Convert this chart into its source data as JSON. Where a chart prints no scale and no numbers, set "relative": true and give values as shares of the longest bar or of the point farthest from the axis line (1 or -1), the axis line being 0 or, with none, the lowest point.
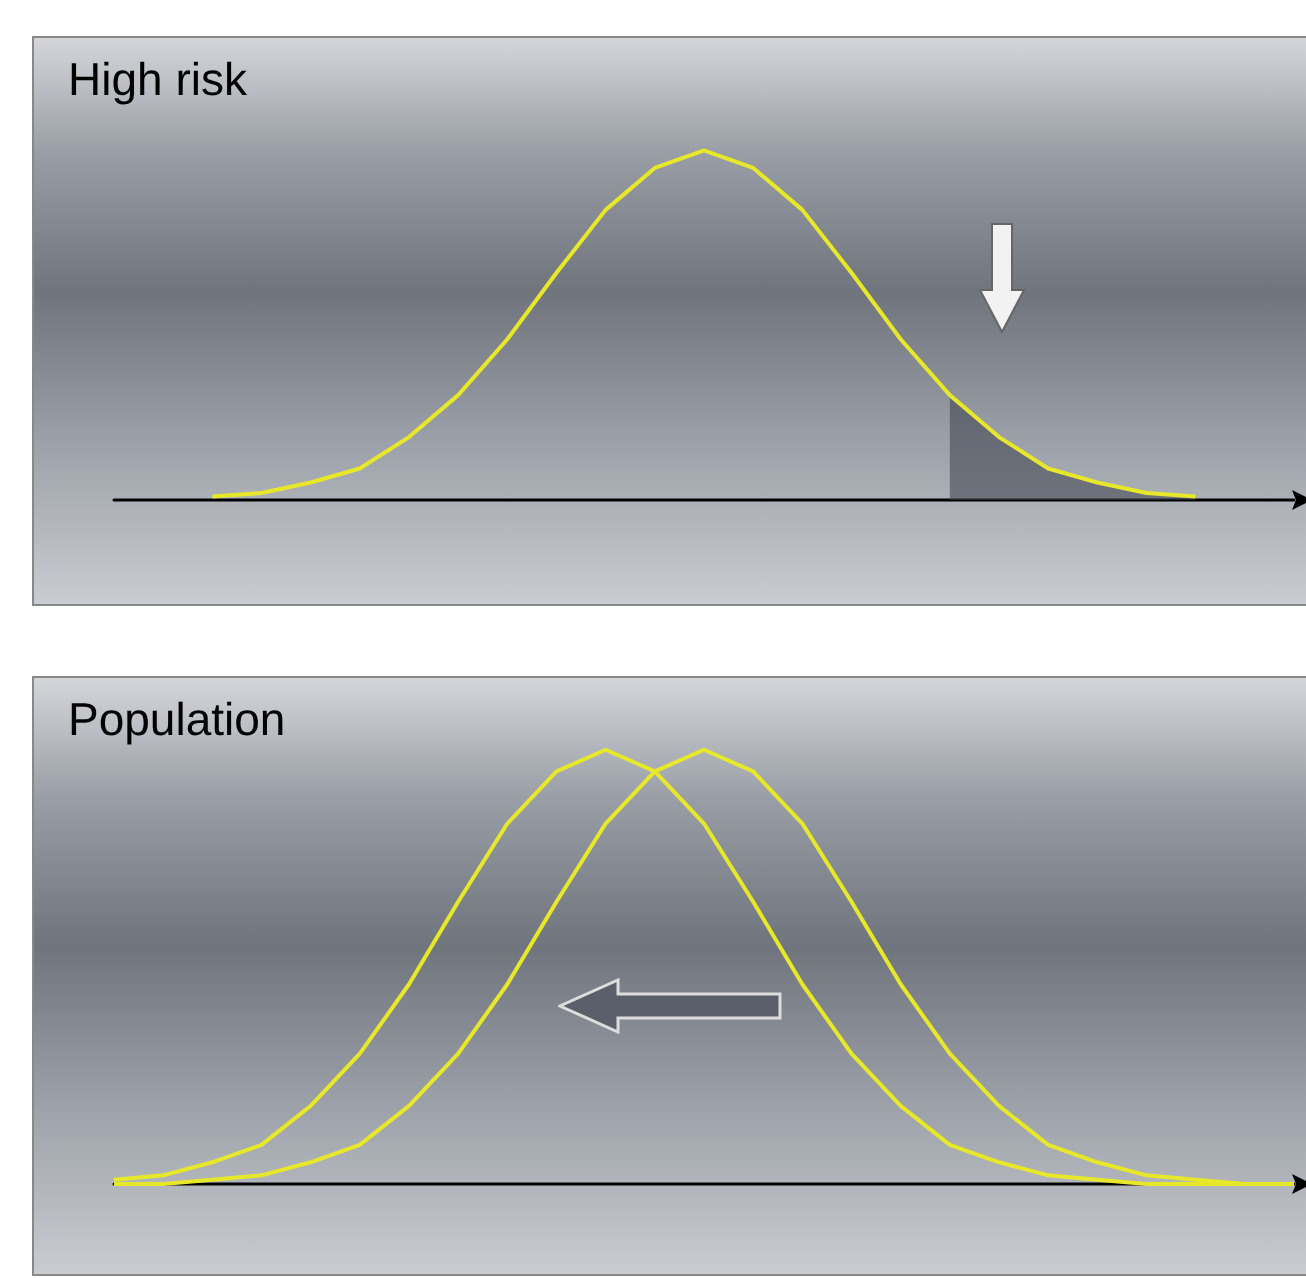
{
  "chart_data": [
    {
      "type": "line",
      "title": "High risk",
      "relative": true,
      "grid": false,
      "marker": "none",
      "categories": [
        null,
        null,
        null,
        null,
        null,
        null,
        null,
        null,
        null,
        null,
        null,
        null,
        null,
        null,
        null,
        null,
        null,
        null,
        null,
        null,
        null,
        null,
        null,
        null,
        null
      ],
      "series": [
        {
          "color": "#e8e82a",
          "values": [
            null,
            null,
            0.01,
            0.02,
            0.05,
            0.09,
            0.18,
            0.3,
            0.46,
            0.65,
            0.83,
            0.95,
            1,
            0.95,
            0.83,
            0.65,
            0.46,
            0.3,
            0.18,
            0.09,
            0.05,
            0.02,
            0.01,
            null,
            null
          ]
        },
        {
          "type": "area",
          "color": "#3a3f4a",
          "values": [
            null,
            null,
            null,
            null,
            null,
            null,
            null,
            null,
            null,
            null,
            null,
            null,
            null,
            null,
            null,
            null,
            null,
            0.3,
            0.18,
            0.09,
            0.05,
            0.02,
            0.01,
            null,
            null
          ]
        }
      ]
    },
    {
      "type": "line",
      "title": "Population",
      "relative": true,
      "grid": false,
      "marker": "none",
      "categories": [
        null,
        null,
        null,
        null,
        null,
        null,
        null,
        null,
        null,
        null,
        null,
        null,
        null,
        null,
        null,
        null,
        null,
        null,
        null,
        null,
        null,
        null,
        null,
        null,
        null
      ],
      "series": [
        {
          "color": "#e8e82a",
          "values": [
            0.01,
            0.02,
            0.05,
            0.09,
            0.18,
            0.3,
            0.46,
            0.65,
            0.83,
            0.95,
            1,
            0.95,
            0.83,
            0.65,
            0.46,
            0.3,
            0.18,
            0.09,
            0.05,
            0.02,
            0.01,
            0,
            0,
            0,
            0
          ]
        },
        {
          "color": "#e8e82a",
          "values": [
            0,
            0,
            0.01,
            0.02,
            0.05,
            0.09,
            0.18,
            0.3,
            0.46,
            0.65,
            0.83,
            0.95,
            1,
            0.95,
            0.83,
            0.65,
            0.46,
            0.3,
            0.18,
            0.09,
            0.05,
            0.02,
            0.01,
            0,
            0
          ]
        }
      ]
    }
  ]
}
